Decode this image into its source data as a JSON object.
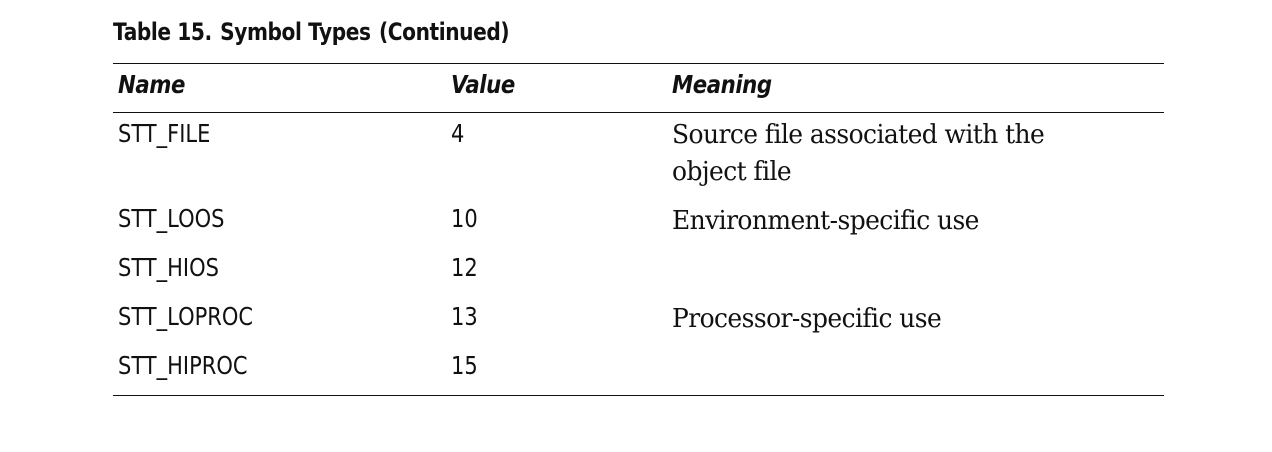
{
  "table": {
    "caption_label": "Table 15.",
    "caption_title": "Symbol Types",
    "caption_note": "(Continued)",
    "headers": [
      "Name",
      "Value",
      "Meaning"
    ],
    "rows": [
      {
        "name": "STT_FILE",
        "value": "4",
        "meaning_line1": "Source file associated with the",
        "meaning_line2": "object file"
      },
      {
        "name": "STT_LOOS",
        "value": "10",
        "meaning_line1": "Environment-specific use",
        "meaning_line2": ""
      },
      {
        "name": "STT_HIOS",
        "value": "12",
        "meaning_line1": "",
        "meaning_line2": ""
      },
      {
        "name": "STT_LOPROC",
        "value": "13",
        "meaning_line1": "Processor-specific use",
        "meaning_line2": ""
      },
      {
        "name": "STT_HIPROC",
        "value": "15",
        "meaning_line1": "",
        "meaning_line2": ""
      }
    ]
  }
}
